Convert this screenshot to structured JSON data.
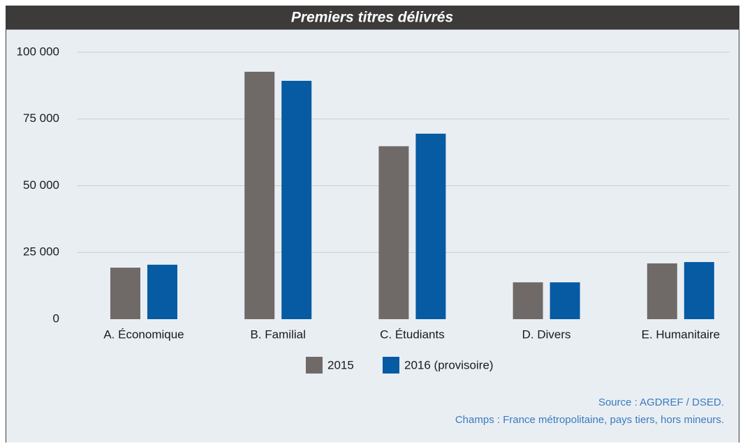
{
  "chart_data": {
    "type": "bar",
    "title": "Premiers titres délivrés",
    "categories": [
      "A. Économique",
      "B. Familial",
      "C. Étudiants",
      "D. Divers",
      "E. Humanitaire"
    ],
    "series": [
      {
        "name": "2015",
        "color": "#6f6a68",
        "values": [
          19300,
          92700,
          64800,
          13800,
          20900
        ]
      },
      {
        "name": "2016 (provisoire)",
        "color": "#065ba3",
        "values": [
          20400,
          89300,
          69500,
          13800,
          21400
        ]
      }
    ],
    "ylim": [
      0,
      100000
    ],
    "yticks": [
      0,
      {
        "value": 25000,
        "label": "25 000"
      },
      {
        "value": 50000,
        "label": "50 000"
      },
      {
        "value": 75000,
        "label": "75 000"
      },
      {
        "value": 100000,
        "label": "100 000"
      }
    ],
    "grid": true,
    "source": "Source : AGDREF / DSED.",
    "note": "Champs : France métropolitaine, pays tiers, hors mineurs."
  }
}
